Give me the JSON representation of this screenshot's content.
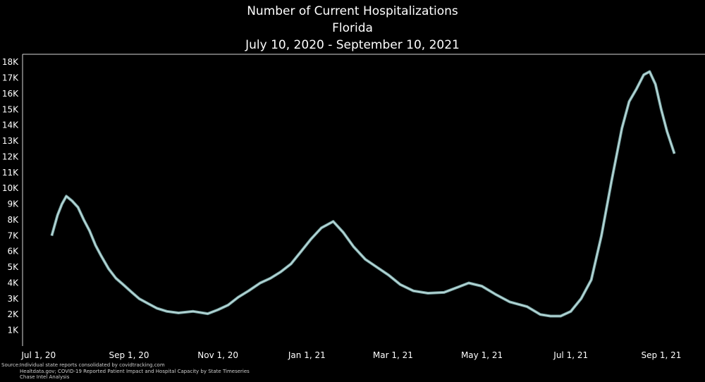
{
  "chart_data": {
    "type": "line",
    "title": "Number of Current Hospitalizations",
    "subtitle": "Florida",
    "date_range": "July 10, 2020 - September 10, 2021",
    "xlabel": "",
    "ylabel": "",
    "ylim": [
      0,
      18500
    ],
    "y_ticks": [
      1000,
      2000,
      3000,
      4000,
      5000,
      6000,
      7000,
      8000,
      9000,
      10000,
      11000,
      12000,
      13000,
      14000,
      15000,
      16000,
      17000,
      18000
    ],
    "y_tick_labels": [
      "1K",
      "2K",
      "3K",
      "4K",
      "5K",
      "6K",
      "7K",
      "8K",
      "9K",
      "10K",
      "11K",
      "12K",
      "13K",
      "14K",
      "15K",
      "16K",
      "17K",
      "18K"
    ],
    "x_ticks": [
      "2020-07-01",
      "2020-09-01",
      "2020-11-01",
      "2021-01-01",
      "2021-03-01",
      "2021-05-01",
      "2021-07-01",
      "2021-09-01"
    ],
    "x_tick_labels": [
      "Jul 1, 20",
      "Sep 1, 20",
      "Nov 1, 20",
      "Jan 1, 21",
      "Mar 1, 21",
      "May 1, 21",
      "Jul 1, 21",
      "Sep 1, 21"
    ],
    "xlim": [
      "2020-06-20",
      "2021-10-01"
    ],
    "line_color": "#b8d8d8",
    "grid": false,
    "series": [
      {
        "x": [
          "2020-07-10",
          "2020-07-14",
          "2020-07-17",
          "2020-07-20",
          "2020-07-24",
          "2020-07-28",
          "2020-08-01",
          "2020-08-05",
          "2020-08-09",
          "2020-08-13",
          "2020-08-18",
          "2020-08-23",
          "2020-08-28",
          "2020-09-03",
          "2020-09-08",
          "2020-09-14",
          "2020-09-20",
          "2020-09-27",
          "2020-10-05",
          "2020-10-15",
          "2020-10-25",
          "2020-11-01",
          "2020-11-08",
          "2020-11-15",
          "2020-11-22",
          "2020-11-30",
          "2020-12-07",
          "2020-12-14",
          "2020-12-21",
          "2020-12-28",
          "2021-01-04",
          "2021-01-11",
          "2021-01-15",
          "2021-01-19",
          "2021-01-26",
          "2021-02-02",
          "2021-02-10",
          "2021-02-18",
          "2021-02-26",
          "2021-03-06",
          "2021-03-15",
          "2021-03-25",
          "2021-04-05",
          "2021-04-15",
          "2021-04-22",
          "2021-05-01",
          "2021-05-10",
          "2021-05-20",
          "2021-06-01",
          "2021-06-10",
          "2021-06-17",
          "2021-06-24",
          "2021-07-01",
          "2021-07-08",
          "2021-07-15",
          "2021-07-22",
          "2021-07-29",
          "2021-08-05",
          "2021-08-10",
          "2021-08-15",
          "2021-08-20",
          "2021-08-24",
          "2021-08-28",
          "2021-09-01",
          "2021-09-05",
          "2021-09-10"
        ],
        "values": [
          7000,
          8300,
          9000,
          9500,
          9200,
          8800,
          8000,
          7300,
          6400,
          5700,
          4900,
          4300,
          3900,
          3400,
          3000,
          2700,
          2400,
          2200,
          2100,
          2200,
          2050,
          2300,
          2600,
          3100,
          3500,
          4000,
          4300,
          4700,
          5200,
          6000,
          6800,
          7500,
          7700,
          7900,
          7200,
          6300,
          5500,
          5000,
          4500,
          3900,
          3500,
          3350,
          3400,
          3750,
          4000,
          3800,
          3300,
          2800,
          2500,
          2000,
          1900,
          1900,
          2200,
          3000,
          4200,
          7000,
          10500,
          13800,
          15500,
          16300,
          17200,
          17400,
          16600,
          15000,
          13600,
          12200
        ]
      }
    ]
  },
  "source": {
    "label": "Source:",
    "lines": [
      "Individual state reports consolidated by covidtracking.com",
      "Healtdata.gov; COVID-19 Reported Patient Impact and Hospital Capacity by State Timeseries",
      "Chase Intel Analysis"
    ]
  }
}
